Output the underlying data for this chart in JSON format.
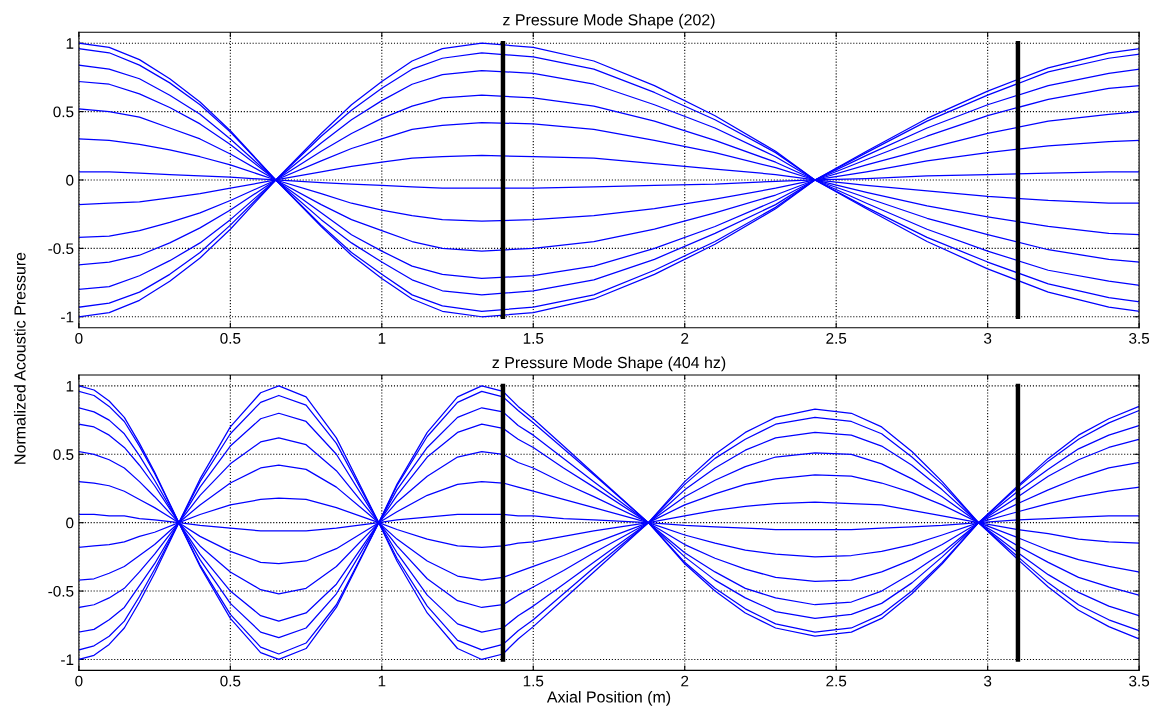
{
  "chart_data": [
    {
      "type": "line",
      "title": "z Pressure Mode Shape (202)",
      "ylabel": "Normalized Acoustic Pressure",
      "xlim": [
        0,
        3.5
      ],
      "xticks": [
        0,
        0.5,
        1,
        1.5,
        2,
        2.5,
        3,
        3.5
      ],
      "ylim": [
        -1.08,
        1.08
      ],
      "yticks": [
        -1,
        -0.5,
        0,
        0.5,
        1
      ],
      "grid": true,
      "line_style": "solid",
      "x": [
        0,
        0.1,
        0.2,
        0.3,
        0.4,
        0.5,
        0.65,
        0.8,
        0.9,
        1.0,
        1.1,
        1.2,
        1.33,
        1.5,
        1.7,
        1.9,
        2.1,
        2.3,
        2.43,
        2.6,
        2.8,
        3.0,
        3.2,
        3.4,
        3.5
      ],
      "series": [
        {
          "color": "#0000ff",
          "values": [
            1,
            0.97,
            0.88,
            0.74,
            0.57,
            0.36,
            0,
            -0.34,
            -0.55,
            -0.72,
            -0.87,
            -0.96,
            -1,
            -0.97,
            -0.87,
            -0.69,
            -0.47,
            -0.21,
            0,
            0.21,
            0.45,
            0.65,
            0.82,
            0.93,
            0.96
          ]
        },
        {
          "color": "#0000ff",
          "values": [
            0.96,
            0.93,
            0.84,
            0.71,
            0.55,
            0.35,
            0,
            -0.33,
            -0.53,
            -0.69,
            -0.84,
            -0.92,
            -0.96,
            -0.93,
            -0.84,
            -0.66,
            -0.45,
            -0.2,
            0,
            0.2,
            0.43,
            0.62,
            0.79,
            0.89,
            0.92
          ]
        },
        {
          "color": "#0000ff",
          "values": [
            0.84,
            0.81,
            0.74,
            0.62,
            0.48,
            0.3,
            0,
            -0.29,
            -0.46,
            -0.6,
            -0.73,
            -0.81,
            -0.84,
            -0.81,
            -0.73,
            -0.58,
            -0.39,
            -0.18,
            0,
            0.18,
            0.38,
            0.55,
            0.69,
            0.78,
            0.81
          ]
        },
        {
          "color": "#0000ff",
          "values": [
            0.72,
            0.7,
            0.63,
            0.53,
            0.41,
            0.26,
            0,
            -0.24,
            -0.4,
            -0.52,
            -0.63,
            -0.69,
            -0.72,
            -0.7,
            -0.63,
            -0.5,
            -0.34,
            -0.15,
            0,
            0.15,
            0.32,
            0.47,
            0.59,
            0.67,
            0.69
          ]
        },
        {
          "color": "#0000ff",
          "values": [
            0.52,
            0.5,
            0.46,
            0.38,
            0.3,
            0.19,
            0,
            -0.18,
            -0.29,
            -0.37,
            -0.45,
            -0.5,
            -0.52,
            -0.5,
            -0.45,
            -0.36,
            -0.24,
            -0.11,
            0,
            0.11,
            0.23,
            0.34,
            0.43,
            0.48,
            0.5
          ]
        },
        {
          "color": "#0000ff",
          "values": [
            0.3,
            0.29,
            0.26,
            0.22,
            0.17,
            0.11,
            0,
            -0.1,
            -0.17,
            -0.22,
            -0.26,
            -0.29,
            -0.3,
            -0.29,
            -0.26,
            -0.21,
            -0.14,
            -0.06,
            0,
            0.06,
            0.14,
            0.2,
            0.25,
            0.28,
            0.29
          ]
        },
        {
          "color": "#0000ff",
          "values": [
            0.06,
            0.06,
            0.05,
            0.04,
            0.03,
            0.02,
            0,
            -0.02,
            -0.03,
            -0.04,
            -0.05,
            -0.06,
            -0.06,
            -0.06,
            -0.05,
            -0.04,
            -0.03,
            -0.01,
            0,
            0.01,
            0.03,
            0.04,
            0.05,
            0.06,
            0.06
          ]
        },
        {
          "color": "#0000ff",
          "values": [
            -0.18,
            -0.17,
            -0.16,
            -0.13,
            -0.1,
            -0.06,
            0,
            0.06,
            0.1,
            0.13,
            0.16,
            0.17,
            0.18,
            0.17,
            0.16,
            0.12,
            0.08,
            0.04,
            0,
            -0.04,
            -0.08,
            -0.12,
            -0.15,
            -0.17,
            -0.17
          ]
        },
        {
          "color": "#0000ff",
          "values": [
            -0.42,
            -0.41,
            -0.37,
            -0.31,
            -0.24,
            -0.15,
            0,
            0.14,
            0.23,
            0.3,
            0.37,
            0.4,
            0.42,
            0.41,
            0.37,
            0.29,
            0.2,
            0.09,
            0,
            -0.09,
            -0.19,
            -0.27,
            -0.34,
            -0.39,
            -0.4
          ]
        },
        {
          "color": "#0000ff",
          "values": [
            -0.62,
            -0.6,
            -0.55,
            -0.46,
            -0.35,
            -0.22,
            0,
            0.21,
            0.34,
            0.45,
            0.54,
            0.6,
            0.62,
            0.6,
            0.54,
            0.43,
            0.29,
            0.13,
            0,
            -0.13,
            -0.28,
            -0.4,
            -0.51,
            -0.58,
            -0.6
          ]
        },
        {
          "color": "#0000ff",
          "values": [
            -0.8,
            -0.78,
            -0.7,
            -0.59,
            -0.46,
            -0.29,
            0,
            0.27,
            0.44,
            0.58,
            0.7,
            0.77,
            0.8,
            0.78,
            0.7,
            0.55,
            0.38,
            0.17,
            0,
            -0.17,
            -0.36,
            -0.52,
            -0.66,
            -0.74,
            -0.77
          ]
        },
        {
          "color": "#0000ff",
          "values": [
            -0.93,
            -0.9,
            -0.82,
            -0.69,
            -0.53,
            -0.33,
            0,
            0.32,
            0.51,
            0.67,
            0.81,
            0.89,
            0.93,
            0.9,
            0.81,
            0.64,
            0.44,
            0.2,
            0,
            -0.2,
            -0.42,
            -0.6,
            -0.76,
            -0.86,
            -0.89
          ]
        },
        {
          "color": "#0000ff",
          "values": [
            -1,
            -0.97,
            -0.88,
            -0.74,
            -0.57,
            -0.36,
            0,
            0.34,
            0.55,
            0.72,
            0.87,
            0.96,
            1,
            0.97,
            0.87,
            0.69,
            0.47,
            0.21,
            0,
            -0.21,
            -0.45,
            -0.65,
            -0.82,
            -0.93,
            -0.96
          ]
        }
      ],
      "ref_lines": [
        {
          "axis": "x",
          "value": 1.4,
          "color": "#000000"
        },
        {
          "axis": "x",
          "value": 3.1,
          "color": "#000000"
        }
      ]
    },
    {
      "type": "line",
      "title": "z Pressure Mode Shape (404 hz)",
      "xlabel": "Axial Position (m)",
      "xlim": [
        0,
        3.5
      ],
      "xticks": [
        0,
        0.5,
        1,
        1.5,
        2,
        2.5,
        3,
        3.5
      ],
      "ylim": [
        -1.08,
        1.08
      ],
      "yticks": [
        -1,
        -0.5,
        0,
        0.5,
        1
      ],
      "grid": true,
      "line_style": "solid",
      "x": [
        0,
        0.05,
        0.1,
        0.15,
        0.2,
        0.25,
        0.33,
        0.4,
        0.5,
        0.6,
        0.66,
        0.75,
        0.85,
        0.99,
        1.05,
        1.15,
        1.25,
        1.33,
        1.4,
        1.45,
        1.5,
        1.6,
        1.7,
        1.88,
        2.0,
        2.1,
        2.2,
        2.3,
        2.43,
        2.55,
        2.65,
        2.75,
        2.85,
        2.97,
        3.1,
        3.2,
        3.3,
        3.4,
        3.5
      ],
      "series": [
        {
          "color": "#0000ff",
          "values": [
            1,
            0.97,
            0.89,
            0.77,
            0.58,
            0.37,
            0,
            -0.32,
            -0.7,
            -0.95,
            -1,
            -0.92,
            -0.62,
            0,
            0.28,
            0.66,
            0.92,
            1,
            0.96,
            0.85,
            0.76,
            0.56,
            0.36,
            0,
            -0.3,
            -0.5,
            -0.66,
            -0.77,
            -0.83,
            -0.8,
            -0.7,
            -0.52,
            -0.3,
            0,
            0.27,
            0.47,
            0.64,
            0.76,
            0.85
          ]
        },
        {
          "color": "#0000ff",
          "values": [
            0.96,
            0.93,
            0.85,
            0.74,
            0.56,
            0.36,
            0,
            -0.31,
            -0.67,
            -0.91,
            -0.96,
            -0.88,
            -0.6,
            0,
            0.27,
            0.63,
            0.88,
            0.96,
            0.92,
            0.82,
            0.73,
            0.54,
            0.35,
            0,
            -0.29,
            -0.48,
            -0.63,
            -0.74,
            -0.8,
            -0.77,
            -0.67,
            -0.5,
            -0.29,
            0,
            0.26,
            0.45,
            0.61,
            0.73,
            0.82
          ]
        },
        {
          "color": "#0000ff",
          "values": [
            0.84,
            0.81,
            0.75,
            0.65,
            0.49,
            0.31,
            0,
            -0.27,
            -0.59,
            -0.8,
            -0.84,
            -0.77,
            -0.52,
            0,
            0.24,
            0.55,
            0.77,
            0.84,
            0.81,
            0.71,
            0.64,
            0.47,
            0.3,
            0,
            -0.25,
            -0.42,
            -0.55,
            -0.65,
            -0.7,
            -0.67,
            -0.59,
            -0.44,
            -0.25,
            0,
            0.23,
            0.39,
            0.54,
            0.64,
            0.71
          ]
        },
        {
          "color": "#0000ff",
          "values": [
            0.72,
            0.7,
            0.64,
            0.55,
            0.42,
            0.27,
            0,
            -0.23,
            -0.5,
            -0.68,
            -0.72,
            -0.66,
            -0.45,
            0,
            0.2,
            0.48,
            0.66,
            0.72,
            0.69,
            0.61,
            0.55,
            0.4,
            0.26,
            0,
            -0.22,
            -0.36,
            -0.48,
            -0.55,
            -0.6,
            -0.58,
            -0.5,
            -0.37,
            -0.22,
            0,
            0.19,
            0.34,
            0.46,
            0.55,
            0.61
          ]
        },
        {
          "color": "#0000ff",
          "values": [
            0.52,
            0.5,
            0.46,
            0.4,
            0.3,
            0.19,
            0,
            -0.17,
            -0.36,
            -0.49,
            -0.52,
            -0.48,
            -0.32,
            0,
            0.15,
            0.34,
            0.48,
            0.52,
            0.5,
            0.44,
            0.4,
            0.29,
            0.19,
            0,
            -0.16,
            -0.26,
            -0.34,
            -0.4,
            -0.43,
            -0.42,
            -0.36,
            -0.27,
            -0.16,
            0,
            0.14,
            0.24,
            0.33,
            0.4,
            0.44
          ]
        },
        {
          "color": "#0000ff",
          "values": [
            0.3,
            0.29,
            0.27,
            0.23,
            0.17,
            0.11,
            0,
            -0.1,
            -0.21,
            -0.29,
            -0.3,
            -0.28,
            -0.19,
            0,
            0.08,
            0.2,
            0.28,
            0.3,
            0.29,
            0.26,
            0.23,
            0.17,
            0.11,
            0,
            -0.09,
            -0.15,
            -0.2,
            -0.23,
            -0.25,
            -0.24,
            -0.21,
            -0.16,
            -0.09,
            0,
            0.08,
            0.14,
            0.19,
            0.23,
            0.26
          ]
        },
        {
          "color": "#0000ff",
          "values": [
            0.06,
            0.06,
            0.05,
            0.05,
            0.03,
            0.02,
            0,
            -0.02,
            -0.04,
            -0.06,
            -0.06,
            -0.06,
            -0.04,
            0,
            0.02,
            0.04,
            0.06,
            0.06,
            0.06,
            0.05,
            0.05,
            0.03,
            0.02,
            0,
            -0.02,
            -0.03,
            -0.04,
            -0.05,
            -0.05,
            -0.05,
            -0.04,
            -0.03,
            -0.02,
            0,
            0.02,
            0.03,
            0.04,
            0.05,
            0.05
          ]
        },
        {
          "color": "#0000ff",
          "values": [
            -0.18,
            -0.17,
            -0.16,
            -0.14,
            -0.1,
            -0.07,
            0,
            0.06,
            0.13,
            0.17,
            0.18,
            0.17,
            0.11,
            0,
            -0.05,
            -0.12,
            -0.17,
            -0.18,
            -0.17,
            -0.15,
            -0.14,
            -0.1,
            -0.06,
            0,
            0.05,
            0.09,
            0.12,
            0.14,
            0.15,
            0.14,
            0.13,
            0.09,
            0.05,
            0,
            -0.05,
            -0.08,
            -0.12,
            -0.14,
            -0.15
          ]
        },
        {
          "color": "#0000ff",
          "values": [
            -0.42,
            -0.41,
            -0.37,
            -0.32,
            -0.24,
            -0.16,
            0,
            0.13,
            0.29,
            0.4,
            0.42,
            0.39,
            0.26,
            0,
            -0.12,
            -0.28,
            -0.39,
            -0.42,
            -0.4,
            -0.36,
            -0.32,
            -0.24,
            -0.15,
            0,
            0.13,
            0.21,
            0.28,
            0.32,
            0.35,
            0.34,
            0.29,
            0.22,
            0.13,
            0,
            -0.11,
            -0.2,
            -0.27,
            -0.32,
            -0.36
          ]
        },
        {
          "color": "#0000ff",
          "values": [
            -0.62,
            -0.6,
            -0.55,
            -0.48,
            -0.36,
            -0.23,
            0,
            0.2,
            0.43,
            0.59,
            0.62,
            0.57,
            0.38,
            0,
            -0.17,
            -0.41,
            -0.57,
            -0.62,
            -0.6,
            -0.53,
            -0.47,
            -0.35,
            -0.22,
            0,
            0.19,
            0.31,
            0.41,
            0.48,
            0.51,
            0.5,
            0.43,
            0.32,
            0.19,
            0,
            -0.17,
            -0.29,
            -0.4,
            -0.47,
            -0.53
          ]
        },
        {
          "color": "#0000ff",
          "values": [
            -0.8,
            -0.78,
            -0.71,
            -0.62,
            -0.46,
            -0.3,
            0,
            0.26,
            0.56,
            0.76,
            0.8,
            0.74,
            0.5,
            0,
            -0.22,
            -0.53,
            -0.74,
            -0.8,
            -0.77,
            -0.68,
            -0.61,
            -0.45,
            -0.29,
            0,
            0.24,
            0.4,
            0.53,
            0.62,
            0.66,
            0.64,
            0.56,
            0.42,
            0.24,
            0,
            -0.22,
            -0.38,
            -0.51,
            -0.61,
            -0.68
          ]
        },
        {
          "color": "#0000ff",
          "values": [
            -0.93,
            -0.9,
            -0.83,
            -0.72,
            -0.54,
            -0.34,
            0,
            0.3,
            0.65,
            0.88,
            0.93,
            0.86,
            0.58,
            0,
            -0.26,
            -0.61,
            -0.86,
            -0.93,
            -0.89,
            -0.79,
            -0.71,
            -0.52,
            -0.33,
            0,
            0.28,
            0.47,
            0.61,
            0.72,
            0.77,
            0.74,
            0.65,
            0.48,
            0.28,
            0,
            -0.25,
            -0.44,
            -0.6,
            -0.71,
            -0.79
          ]
        },
        {
          "color": "#0000ff",
          "values": [
            -1,
            -0.97,
            -0.89,
            -0.77,
            -0.58,
            -0.37,
            0,
            0.32,
            0.7,
            0.95,
            1,
            0.92,
            0.62,
            0,
            -0.28,
            -0.66,
            -0.92,
            -1,
            -0.96,
            -0.85,
            -0.76,
            -0.56,
            -0.36,
            0,
            0.3,
            0.5,
            0.66,
            0.77,
            0.83,
            0.8,
            0.7,
            0.52,
            0.3,
            0,
            -0.27,
            -0.47,
            -0.64,
            -0.76,
            -0.85
          ]
        }
      ],
      "ref_lines": [
        {
          "axis": "x",
          "value": 1.4,
          "color": "#000000"
        },
        {
          "axis": "x",
          "value": 3.1,
          "color": "#000000"
        }
      ]
    }
  ]
}
